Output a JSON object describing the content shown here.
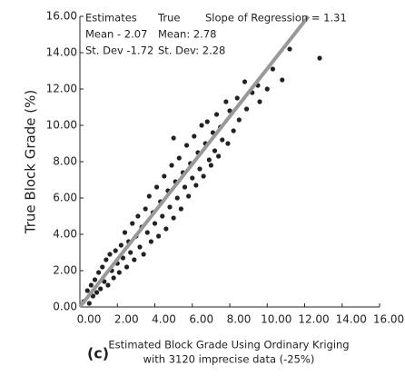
{
  "chart_data": {
    "type": "scatter",
    "ylabel": "True Block Grade (%)",
    "xlabel": [
      "Estimated Block Grade Using Ordinary Kriging",
      "with 3120 imprecise data (-25%)"
    ],
    "panel_label": "(c)",
    "annotations": {
      "col1": [
        "Estimates",
        "Mean - 2.07",
        "St. Dev -1.72"
      ],
      "col2": [
        "True",
        "Mean: 2.78",
        "St. Dev: 2.28"
      ],
      "slope": "Slope of Regression = 1.31"
    },
    "xlim": [
      0,
      16
    ],
    "ylim": [
      0,
      16
    ],
    "xticks": [
      {
        "value": 0,
        "label": "0.00"
      },
      {
        "value": 2,
        "label": "2.00"
      },
      {
        "value": 4,
        "label": "4.00"
      },
      {
        "value": 6,
        "label": "6.00"
      },
      {
        "value": 8,
        "label": "8.00"
      },
      {
        "value": 10,
        "label": "10.00"
      },
      {
        "value": 12,
        "label": "12.00"
      },
      {
        "value": 14,
        "label": "14.00"
      },
      {
        "value": 16,
        "label": "16.00"
      }
    ],
    "yticks": [
      {
        "value": 0,
        "label": "0.00"
      },
      {
        "value": 2,
        "label": "2.00"
      },
      {
        "value": 4,
        "label": "4.00"
      },
      {
        "value": 6,
        "label": "6.00"
      },
      {
        "value": 8,
        "label": "8.00"
      },
      {
        "value": 10,
        "label": "10.00"
      },
      {
        "value": 12,
        "label": "12.00"
      },
      {
        "value": 14,
        "label": "14.00"
      },
      {
        "value": 16,
        "label": "16.00"
      }
    ],
    "regression_line": {
      "color": "#999999",
      "x": [
        0,
        12.2
      ],
      "y": [
        0,
        16
      ]
    },
    "series": [
      {
        "color": "#222222",
        "x": [
          0.2,
          0.4,
          0.5,
          0.6,
          0.7,
          0.8,
          0.9,
          1.0,
          1.1,
          1.2,
          1.3,
          1.4,
          1.5,
          1.6,
          1.7,
          1.8,
          1.9,
          2.0,
          2.1,
          2.2,
          2.3,
          2.4,
          2.5,
          2.6,
          2.7,
          2.8,
          2.9,
          3.0,
          3.1,
          3.2,
          3.3,
          3.4,
          3.5,
          3.6,
          3.7,
          3.8,
          3.9,
          4.0,
          4.1,
          4.2,
          4.3,
          4.4,
          4.5,
          4.6,
          4.7,
          4.8,
          4.9,
          5.0,
          5.0,
          5.1,
          5.2,
          5.3,
          5.4,
          5.5,
          5.6,
          5.7,
          5.8,
          5.9,
          6.0,
          6.1,
          6.2,
          6.3,
          6.4,
          6.5,
          6.6,
          6.7,
          6.8,
          6.9,
          7.0,
          7.1,
          7.2,
          7.3,
          7.4,
          7.5,
          7.6,
          7.8,
          7.9,
          8.0,
          8.2,
          8.4,
          8.5,
          8.8,
          8.9,
          9.2,
          9.5,
          9.6,
          10.0,
          10.3,
          10.8,
          11.2,
          12.8
        ],
        "y": [
          0.3,
          0.9,
          0.2,
          1.2,
          0.6,
          1.5,
          0.8,
          1.9,
          1.0,
          2.2,
          1.4,
          2.6,
          1.2,
          2.9,
          2.0,
          1.6,
          3.1,
          2.4,
          1.9,
          3.4,
          2.7,
          4.1,
          2.2,
          3.6,
          3.0,
          4.6,
          2.6,
          3.9,
          5.0,
          3.3,
          4.4,
          2.9,
          5.4,
          4.1,
          6.1,
          3.6,
          5.2,
          4.6,
          6.6,
          3.9,
          5.8,
          5.0,
          7.2,
          4.3,
          6.4,
          5.5,
          7.8,
          4.9,
          9.3,
          6.9,
          6.0,
          8.2,
          5.4,
          7.4,
          6.6,
          8.9,
          6.1,
          7.9,
          7.1,
          9.4,
          6.7,
          8.5,
          7.6,
          10.0,
          7.2,
          9.0,
          10.2,
          8.1,
          7.8,
          9.6,
          8.6,
          10.6,
          8.3,
          9.9,
          9.2,
          11.3,
          9.0,
          10.8,
          9.7,
          11.5,
          10.3,
          12.4,
          10.9,
          11.8,
          12.2,
          11.3,
          12.0,
          13.1,
          12.5,
          14.2,
          13.7
        ]
      }
    ]
  }
}
